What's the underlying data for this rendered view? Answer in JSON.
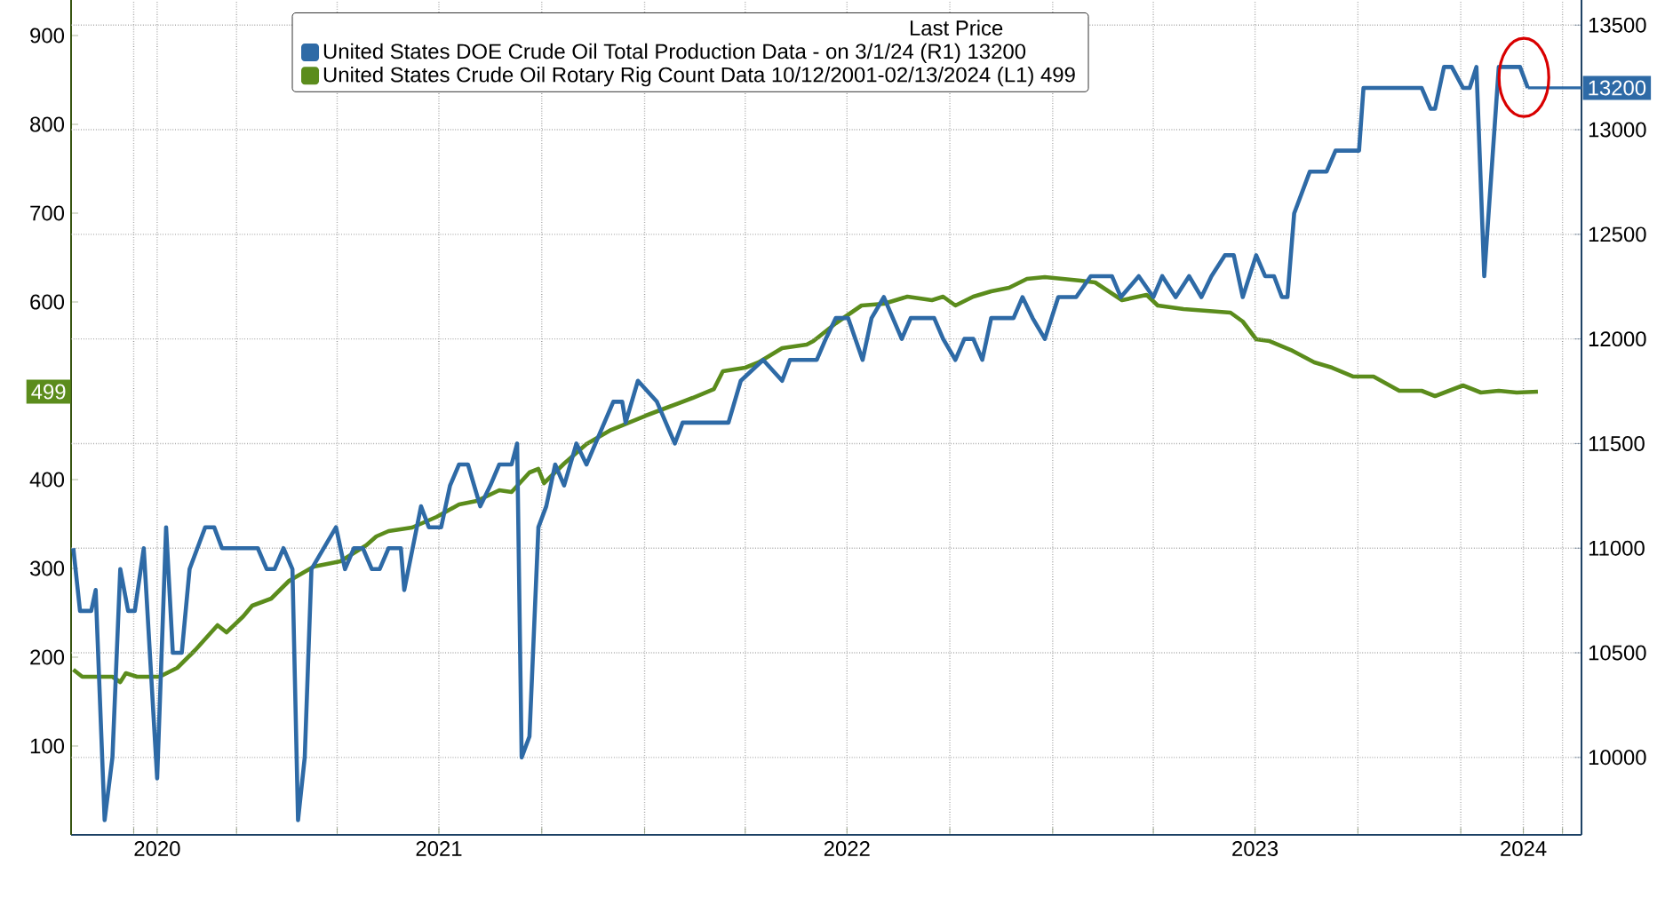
{
  "chart_data": {
    "type": "line",
    "legend_title": "Last Price",
    "xlim": [
      "2020-08-06",
      "2024-04-18"
    ],
    "xticks": [
      {
        "value": "2020-10-01",
        "label": null
      },
      {
        "value": "2020-10-22",
        "label": "2020"
      },
      {
        "value": "2021-01-01",
        "label": null
      },
      {
        "value": "2021-04-01",
        "label": null
      },
      {
        "value": "2021-07-01",
        "label": "2021"
      },
      {
        "value": "2021-10-01",
        "label": null
      },
      {
        "value": "2022-01-01",
        "label": null
      },
      {
        "value": "2022-04-01",
        "label": null
      },
      {
        "value": "2022-07-01",
        "label": "2022"
      },
      {
        "value": "2022-10-01",
        "label": null
      },
      {
        "value": "2023-01-01",
        "label": null
      },
      {
        "value": "2023-04-01",
        "label": null
      },
      {
        "value": "2023-07-01",
        "label": "2023"
      },
      {
        "value": "2023-10-01",
        "label": null
      },
      {
        "value": "2024-01-01",
        "label": null
      },
      {
        "value": "2024-02-26",
        "label": "2024"
      },
      {
        "value": "2024-04-01",
        "label": null
      }
    ],
    "ylim": [
      0,
      940
    ],
    "yticks": [
      100,
      200,
      300,
      400,
      600,
      700,
      800,
      900
    ],
    "annotations": [
      {
        "text": "499",
        "y": 499
      }
    ],
    "y2lim": [
      9630,
      13620
    ],
    "y2ticks": [
      10000,
      10500,
      11000,
      11500,
      12000,
      12500,
      13000,
      13500
    ],
    "grid": true,
    "legend": "top",
    "marker": "none",
    "line_style": "solid",
    "series": [
      {
        "name": "United States DOE Crude Oil Total Production Data -  on 3/1/24  (R1)  13200",
        "color": "#2e6aa6",
        "axis": "y2",
        "x": [
          "2020-08-08",
          "2020-08-14",
          "2020-08-24",
          "2020-08-28",
          "2020-09-05",
          "2020-09-12",
          "2020-09-19",
          "2020-09-26",
          "2020-10-02",
          "2020-10-10",
          "2020-10-22",
          "2020-10-30",
          "2020-11-05",
          "2020-11-13",
          "2020-11-20",
          "2020-12-04",
          "2020-12-12",
          "2020-12-19",
          "2021-01-20",
          "2021-01-28",
          "2021-02-04",
          "2021-02-12",
          "2021-02-20",
          "2021-02-25",
          "2021-03-03",
          "2021-03-09",
          "2021-03-31",
          "2021-04-08",
          "2021-04-16",
          "2021-04-24",
          "2021-05-02",
          "2021-05-09",
          "2021-05-17",
          "2021-05-28",
          "2021-05-31",
          "2021-06-15",
          "2021-06-22",
          "2021-07-03",
          "2021-07-11",
          "2021-07-19",
          "2021-07-27",
          "2021-08-07",
          "2021-08-16",
          "2021-08-24",
          "2021-09-04",
          "2021-09-09",
          "2021-09-13",
          "2021-09-20",
          "2021-09-28",
          "2021-10-05",
          "2021-10-13",
          "2021-10-21",
          "2021-11-01",
          "2021-11-10",
          "2021-12-04",
          "2021-12-12",
          "2021-12-15",
          "2021-12-26",
          "2022-01-12",
          "2022-01-28",
          "2022-02-04",
          "2022-03-17",
          "2022-03-28",
          "2022-04-17",
          "2022-05-04",
          "2022-05-11",
          "2022-06-04",
          "2022-06-12",
          "2022-06-21",
          "2022-07-02",
          "2022-07-15",
          "2022-07-23",
          "2022-08-03",
          "2022-08-19",
          "2022-08-27",
          "2022-09-17",
          "2022-09-25",
          "2022-10-06",
          "2022-10-14",
          "2022-10-22",
          "2022-10-30",
          "2022-11-07",
          "2022-11-27",
          "2022-12-05",
          "2022-12-14",
          "2022-12-25",
          "2023-01-06",
          "2023-01-22",
          "2023-02-04",
          "2023-02-23",
          "2023-03-03",
          "2023-03-19",
          "2023-04-01",
          "2023-04-09",
          "2023-04-21",
          "2023-05-03",
          "2023-05-14",
          "2023-05-23",
          "2023-06-04",
          "2023-06-12",
          "2023-06-20",
          "2023-07-02",
          "2023-07-10",
          "2023-07-18",
          "2023-07-25",
          "2023-07-30",
          "2023-08-05",
          "2023-08-19",
          "2023-09-03",
          "2023-09-11",
          "2023-10-02",
          "2023-10-06",
          "2023-11-27",
          "2023-12-05",
          "2023-12-09",
          "2023-12-17",
          "2023-12-24",
          "2024-01-03",
          "2024-01-09",
          "2024-01-15",
          "2024-01-22",
          "2024-02-04",
          "2024-02-10",
          "2024-02-23",
          "2024-03-01"
        ],
        "values": [
          11000,
          10700,
          10700,
          10800,
          9700,
          10000,
          10900,
          10700,
          10700,
          11000,
          9900,
          11100,
          10500,
          10500,
          10900,
          11100,
          11100,
          11000,
          11000,
          10900,
          10900,
          11000,
          10900,
          9700,
          10000,
          10900,
          11100,
          10900,
          11000,
          11000,
          10900,
          10900,
          11000,
          11000,
          10800,
          11200,
          11100,
          11100,
          11300,
          11400,
          11400,
          11200,
          11300,
          11400,
          11400,
          11500,
          10000,
          10100,
          11100,
          11200,
          11400,
          11300,
          11500,
          11400,
          11700,
          11700,
          11600,
          11800,
          11700,
          11500,
          11600,
          11600,
          11800,
          11900,
          11800,
          11900,
          11900,
          12000,
          12100,
          12100,
          11900,
          12100,
          12200,
          12000,
          12100,
          12100,
          12000,
          11900,
          12000,
          12000,
          11900,
          12100,
          12100,
          12200,
          12100,
          12000,
          12200,
          12200,
          12300,
          12300,
          12200,
          12300,
          12200,
          12300,
          12200,
          12300,
          12200,
          12300,
          12400,
          12400,
          12200,
          12400,
          12300,
          12300,
          12200,
          12200,
          12600,
          12800,
          12800,
          12900,
          12900,
          13200,
          13200,
          13100,
          13100,
          13300,
          13300,
          13200,
          13200,
          13300,
          12300,
          13300,
          13300,
          13300,
          13200
        ],
        "value_labels": [
          null,
          null,
          null,
          null,
          null,
          null,
          null,
          null,
          null,
          null,
          null,
          null,
          null,
          null,
          null,
          null,
          null,
          null,
          null,
          null,
          null,
          null,
          null,
          null,
          null,
          null,
          null,
          null,
          null,
          null,
          null,
          null,
          null,
          null,
          null,
          null,
          null,
          null,
          null,
          null,
          null,
          null,
          null,
          null,
          null,
          null,
          null,
          null,
          null,
          null,
          null,
          null,
          null,
          null,
          null,
          null,
          null,
          null,
          null,
          null,
          null,
          null,
          null,
          null,
          null,
          null,
          null,
          null,
          null,
          null,
          null,
          null,
          null,
          null,
          null,
          null,
          null,
          null,
          null,
          null,
          null,
          null,
          null,
          null,
          null,
          null,
          null,
          null,
          null,
          null,
          null,
          null,
          null,
          null,
          null,
          null,
          null,
          null,
          null,
          null,
          null,
          null,
          null,
          null,
          null,
          null,
          null,
          null,
          null,
          null,
          null,
          null,
          null,
          null,
          null,
          null,
          null,
          null,
          null,
          null,
          null,
          null,
          null,
          null,
          "13200"
        ]
      },
      {
        "name": "United States Crude Oil Rotary Rig Count Data 10/12/2001-02/13/2024  (L1) 499",
        "color": "#5b8c1c",
        "x": [
          "2020-08-08",
          "2020-08-16",
          "2020-08-28",
          "2020-09-12",
          "2020-09-19",
          "2020-09-24",
          "2020-10-04",
          "2020-10-24",
          "2020-11-09",
          "2020-11-25",
          "2020-12-15",
          "2020-12-23",
          "2021-01-07",
          "2021-01-15",
          "2021-02-01",
          "2021-02-17",
          "2021-03-11",
          "2021-04-04",
          "2021-04-27",
          "2021-05-06",
          "2021-05-17",
          "2021-06-07",
          "2021-06-29",
          "2021-07-19",
          "2021-08-04",
          "2021-08-24",
          "2021-09-04",
          "2021-09-20",
          "2021-09-28",
          "2021-10-03",
          "2021-10-21",
          "2021-11-10",
          "2021-12-02",
          "2022-01-02",
          "2022-01-23",
          "2022-02-13",
          "2022-03-04",
          "2022-03-12",
          "2022-04-01",
          "2022-04-13",
          "2022-05-04",
          "2022-05-26",
          "2022-06-01",
          "2022-06-21",
          "2022-07-14",
          "2022-08-03",
          "2022-08-24",
          "2022-09-15",
          "2022-09-25",
          "2022-10-06",
          "2022-10-22",
          "2022-11-07",
          "2022-11-23",
          "2022-12-09",
          "2022-12-25",
          "2023-01-10",
          "2023-01-26",
          "2023-02-08",
          "2023-03-04",
          "2023-03-26",
          "2023-04-05",
          "2023-04-28",
          "2023-06-09",
          "2023-06-20",
          "2023-07-02",
          "2023-07-14",
          "2023-08-02",
          "2023-08-23",
          "2023-09-08",
          "2023-09-27",
          "2023-10-15",
          "2023-11-07",
          "2023-11-27",
          "2023-12-09",
          "2024-01-03",
          "2024-01-19",
          "2024-02-04",
          "2024-02-20",
          "2024-03-10"
        ],
        "values": [
          186,
          178,
          178,
          178,
          172,
          182,
          178,
          178,
          188,
          208,
          236,
          228,
          246,
          258,
          266,
          286,
          302,
          308,
          326,
          336,
          342,
          346,
          358,
          372,
          376,
          388,
          386,
          408,
          412,
          396,
          418,
          440,
          456,
          472,
          482,
          492,
          502,
          522,
          526,
          532,
          548,
          552,
          556,
          576,
          596,
          598,
          606,
          602,
          606,
          596,
          606,
          612,
          616,
          626,
          628,
          626,
          624,
          622,
          602,
          608,
          596,
          592,
          588,
          578,
          558,
          556,
          546,
          532,
          526,
          516,
          516,
          500,
          500,
          494,
          506,
          498,
          500,
          498,
          499
        ],
        "value_labels": [
          null,
          null,
          null,
          null,
          null,
          null,
          null,
          null,
          null,
          null,
          null,
          null,
          null,
          null,
          null,
          null,
          null,
          null,
          null,
          null,
          null,
          null,
          null,
          null,
          null,
          null,
          null,
          null,
          null,
          null,
          null,
          null,
          null,
          null,
          null,
          null,
          null,
          null,
          null,
          null,
          null,
          null,
          null,
          null,
          null,
          null,
          null,
          null,
          null,
          null,
          null,
          null,
          null,
          null,
          null,
          null,
          null,
          null,
          null,
          null,
          null,
          null,
          null,
          null,
          null,
          null,
          null,
          null,
          null,
          null,
          null,
          null,
          null,
          null,
          null,
          null,
          null,
          null,
          null
        ]
      }
    ]
  }
}
